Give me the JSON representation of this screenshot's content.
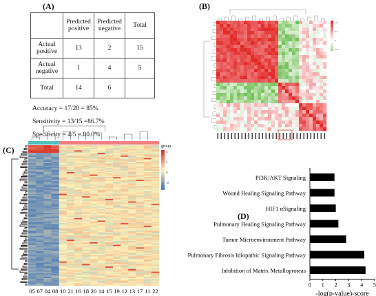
{
  "panels": {
    "a": "(A)",
    "b": "(B)",
    "c": "(C)",
    "d": "(D)"
  },
  "confusion": {
    "columns": [
      "",
      "Predicted positive",
      "Predicted negative",
      "Total"
    ],
    "rows": [
      {
        "label": "Actual positive",
        "values": [
          "13",
          "2",
          "15"
        ]
      },
      {
        "label": "Actual negative",
        "values": [
          "1",
          "4",
          "5"
        ]
      },
      {
        "label": "Total",
        "values": [
          "14",
          "6",
          ""
        ]
      }
    ]
  },
  "metrics": {
    "accuracy": "Accuracy = 17/20 = 85%",
    "sensitivity": "Sensitivity = 13/15 =86.7%",
    "specificity": "Specificity = 4/5 = 80.0%"
  },
  "heatmap_c": {
    "legend_title": "group",
    "legend_ticks": [
      "4",
      "2",
      "0",
      "-2"
    ],
    "sample_labels": [
      "05",
      "07",
      "04",
      "08",
      "10",
      "21",
      "16",
      "18",
      "20",
      "14",
      "15",
      "19",
      "12",
      "13",
      "17",
      "11",
      "22"
    ],
    "colors": {
      "high": "#d73027",
      "mid": "#fff2b8",
      "low": "#4575b4",
      "group_a": "#4fbfbf",
      "group_b": "#f08080"
    }
  },
  "heatmap_b": {
    "colors": {
      "high": "#e32a2a",
      "mid": "#ffffff",
      "low": "#4caf28"
    },
    "legend_ticks": [
      "1.0",
      "0.5",
      "0",
      "-0.5"
    ]
  },
  "chart_data": {
    "type": "bar",
    "orientation": "horizontal",
    "categories": [
      "PI3K/AKT Signaling",
      "Wound Healing Signaling Pathway",
      "HIF1 αSignaling",
      "Pulmonary Healing Signaling Pathway",
      "Tumor Microenvironment Pathway",
      "Pulmonary Fibrosis Idiopathic Signaling Pathway",
      "Inhibition of Matrix Metalloproteas"
    ],
    "values": [
      1.9,
      1.9,
      2.0,
      2.2,
      2.8,
      4.2,
      4.3
    ],
    "xlabel": "-log(p-value)-score",
    "xlim": [
      0,
      5
    ],
    "xticks": [
      "0",
      "1",
      "2",
      "3",
      "4",
      "5"
    ],
    "bar_color": "#000000"
  }
}
